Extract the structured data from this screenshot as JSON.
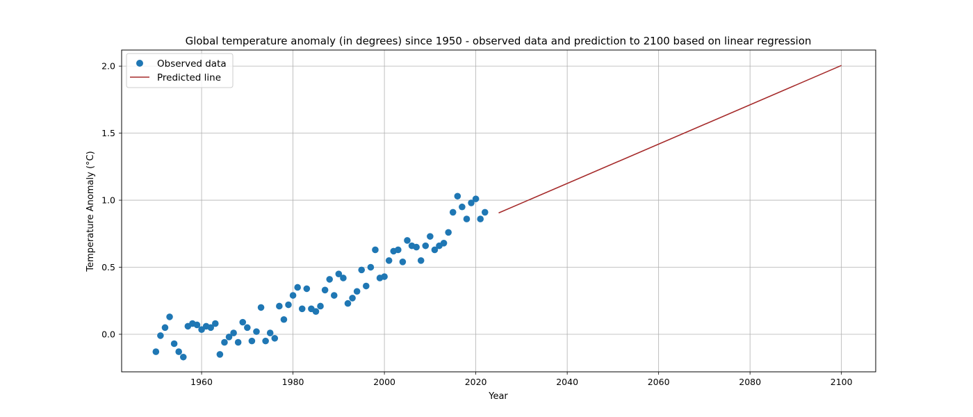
{
  "chart_data": {
    "type": "scatter",
    "title": "Global temperature anomaly (in degrees) since 1950 - observed data and prediction to 2100 based on linear regression",
    "xlabel": "Year",
    "ylabel": "Temperature Anomaly (°C)",
    "xlim": [
      1942.5,
      2107.5
    ],
    "ylim": [
      -0.28,
      2.12
    ],
    "xticks": [
      1960,
      1980,
      2000,
      2020,
      2040,
      2060,
      2080,
      2100
    ],
    "yticks": [
      0.0,
      0.5,
      1.0,
      1.5,
      2.0
    ],
    "xtick_labels": [
      "1960",
      "1980",
      "2000",
      "2020",
      "2040",
      "2060",
      "2080",
      "2100"
    ],
    "ytick_labels": [
      "0.0",
      "0.5",
      "1.0",
      "1.5",
      "2.0"
    ],
    "grid": true,
    "legend_position": "top-left",
    "series": [
      {
        "name": "Observed data",
        "kind": "scatter",
        "color": "#1f77b4",
        "points": [
          [
            1950,
            -0.13
          ],
          [
            1951,
            -0.01
          ],
          [
            1952,
            0.05
          ],
          [
            1953,
            0.13
          ],
          [
            1954,
            -0.07
          ],
          [
            1955,
            -0.13
          ],
          [
            1956,
            -0.17
          ],
          [
            1957,
            0.06
          ],
          [
            1958,
            0.08
          ],
          [
            1959,
            0.07
          ],
          [
            1960,
            0.035
          ],
          [
            1961,
            0.06
          ],
          [
            1962,
            0.05
          ],
          [
            1963,
            0.08
          ],
          [
            1964,
            -0.15
          ],
          [
            1965,
            -0.06
          ],
          [
            1966,
            -0.02
          ],
          [
            1967,
            0.01
          ],
          [
            1968,
            -0.06
          ],
          [
            1969,
            0.09
          ],
          [
            1970,
            0.05
          ],
          [
            1971,
            -0.05
          ],
          [
            1972,
            0.02
          ],
          [
            1973,
            0.2
          ],
          [
            1974,
            -0.05
          ],
          [
            1975,
            0.01
          ],
          [
            1976,
            -0.03
          ],
          [
            1977,
            0.21
          ],
          [
            1978,
            0.11
          ],
          [
            1979,
            0.22
          ],
          [
            1980,
            0.29
          ],
          [
            1981,
            0.35
          ],
          [
            1982,
            0.19
          ],
          [
            1983,
            0.34
          ],
          [
            1984,
            0.19
          ],
          [
            1985,
            0.17
          ],
          [
            1986,
            0.21
          ],
          [
            1987,
            0.33
          ],
          [
            1988,
            0.41
          ],
          [
            1989,
            0.29
          ],
          [
            1990,
            0.45
          ],
          [
            1991,
            0.42
          ],
          [
            1992,
            0.23
          ],
          [
            1993,
            0.27
          ],
          [
            1994,
            0.32
          ],
          [
            1995,
            0.48
          ],
          [
            1996,
            0.36
          ],
          [
            1997,
            0.5
          ],
          [
            1998,
            0.63
          ],
          [
            1999,
            0.42
          ],
          [
            2000,
            0.43
          ],
          [
            2001,
            0.55
          ],
          [
            2002,
            0.62
          ],
          [
            2003,
            0.63
          ],
          [
            2004,
            0.54
          ],
          [
            2005,
            0.7
          ],
          [
            2006,
            0.66
          ],
          [
            2007,
            0.65
          ],
          [
            2008,
            0.55
          ],
          [
            2009,
            0.66
          ],
          [
            2010,
            0.73
          ],
          [
            2011,
            0.63
          ],
          [
            2012,
            0.66
          ],
          [
            2013,
            0.68
          ],
          [
            2014,
            0.76
          ],
          [
            2015,
            0.91
          ],
          [
            2016,
            1.03
          ],
          [
            2017,
            0.95
          ],
          [
            2018,
            0.86
          ],
          [
            2019,
            0.98
          ],
          [
            2020,
            1.01
          ],
          [
            2021,
            0.86
          ],
          [
            2022,
            0.91
          ]
        ]
      },
      {
        "name": "Predicted line",
        "kind": "line",
        "color": "#a52a2a",
        "points": [
          [
            2025,
            0.905
          ],
          [
            2100,
            2.005
          ]
        ]
      }
    ]
  }
}
